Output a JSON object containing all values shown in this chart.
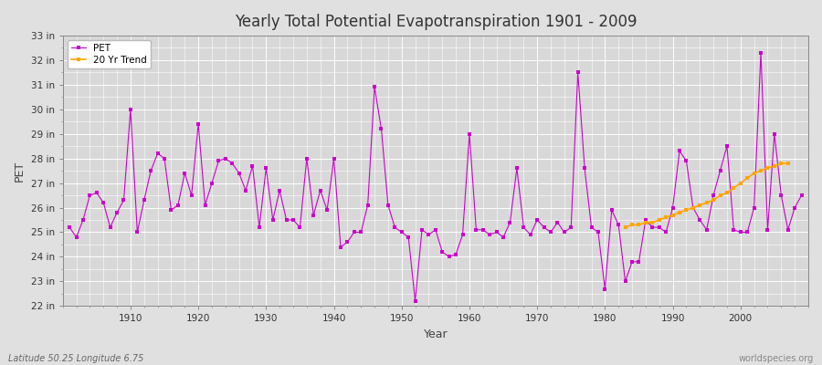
{
  "title": "Yearly Total Potential Evapotranspiration 1901 - 2009",
  "xlabel": "Year",
  "ylabel": "PET",
  "footer_left": "Latitude 50.25 Longitude 6.75",
  "footer_right": "worldspecies.org",
  "bg_color": "#e0e0e0",
  "plot_bg_color": "#d8d8d8",
  "grid_color": "#ffffff",
  "pet_color": "#cc00cc",
  "trend_color": "#ffa500",
  "ylim": [
    22,
    33
  ],
  "ytick_labels": [
    "22 in",
    "23 in",
    "24 in",
    "25 in",
    "26 in",
    "27 in",
    "28 in",
    "29 in",
    "30 in",
    "31 in",
    "32 in",
    "33 in"
  ],
  "ytick_vals": [
    22,
    23,
    24,
    25,
    26,
    27,
    28,
    29,
    30,
    31,
    32,
    33
  ],
  "years": [
    1901,
    1902,
    1903,
    1904,
    1905,
    1906,
    1907,
    1908,
    1909,
    1910,
    1911,
    1912,
    1913,
    1914,
    1915,
    1916,
    1917,
    1918,
    1919,
    1920,
    1921,
    1922,
    1923,
    1924,
    1925,
    1926,
    1927,
    1928,
    1929,
    1930,
    1931,
    1932,
    1933,
    1934,
    1935,
    1936,
    1937,
    1938,
    1939,
    1940,
    1941,
    1942,
    1943,
    1944,
    1945,
    1946,
    1947,
    1948,
    1949,
    1950,
    1951,
    1952,
    1953,
    1954,
    1955,
    1956,
    1957,
    1958,
    1959,
    1960,
    1961,
    1962,
    1963,
    1964,
    1965,
    1966,
    1967,
    1968,
    1969,
    1970,
    1971,
    1972,
    1973,
    1974,
    1975,
    1976,
    1977,
    1978,
    1979,
    1980,
    1981,
    1982,
    1983,
    1984,
    1985,
    1986,
    1987,
    1988,
    1989,
    1990,
    1991,
    1992,
    1993,
    1994,
    1995,
    1996,
    1997,
    1998,
    1999,
    2000,
    2001,
    2002,
    2003,
    2004,
    2005,
    2006,
    2007,
    2008,
    2009
  ],
  "pet_values": [
    25.2,
    24.8,
    25.5,
    26.5,
    26.6,
    26.2,
    25.2,
    25.8,
    26.3,
    30.0,
    25.0,
    26.3,
    27.5,
    28.2,
    28.0,
    25.9,
    26.1,
    27.4,
    26.5,
    29.4,
    26.1,
    27.0,
    27.9,
    28.0,
    27.8,
    27.4,
    26.7,
    27.7,
    25.2,
    27.6,
    25.5,
    26.7,
    25.5,
    25.5,
    25.2,
    28.0,
    25.7,
    26.7,
    25.9,
    28.0,
    24.4,
    24.6,
    25.0,
    25.0,
    26.1,
    30.9,
    29.2,
    26.1,
    25.2,
    25.0,
    24.8,
    22.2,
    25.1,
    24.9,
    25.1,
    24.2,
    24.0,
    24.1,
    24.9,
    29.0,
    25.1,
    25.1,
    24.9,
    25.0,
    24.8,
    25.4,
    27.6,
    25.2,
    24.9,
    25.5,
    25.2,
    25.0,
    25.4,
    25.0,
    25.2,
    31.5,
    27.6,
    25.2,
    25.0,
    22.7,
    25.9,
    25.3,
    23.0,
    23.8,
    23.8,
    25.5,
    25.2,
    25.2,
    25.0,
    26.0,
    28.3,
    27.9,
    26.0,
    25.5,
    25.1,
    26.5,
    27.5,
    28.5,
    25.1,
    25.0,
    25.0,
    26.0,
    32.3,
    25.1,
    29.0,
    26.5,
    25.1,
    26.0,
    26.5
  ],
  "trend_years": [
    1983,
    1984,
    1985,
    1986,
    1987,
    1988,
    1989,
    1990,
    1991,
    1992,
    1993,
    1994,
    1995,
    1996,
    1997,
    1998,
    1999,
    2000,
    2001,
    2002,
    2003,
    2004,
    2005,
    2006,
    2007
  ],
  "trend_values": [
    25.2,
    25.3,
    25.3,
    25.4,
    25.4,
    25.5,
    25.6,
    25.7,
    25.8,
    25.9,
    26.0,
    26.1,
    26.2,
    26.3,
    26.5,
    26.6,
    26.8,
    27.0,
    27.2,
    27.4,
    27.5,
    27.6,
    27.7,
    27.8,
    27.8
  ]
}
